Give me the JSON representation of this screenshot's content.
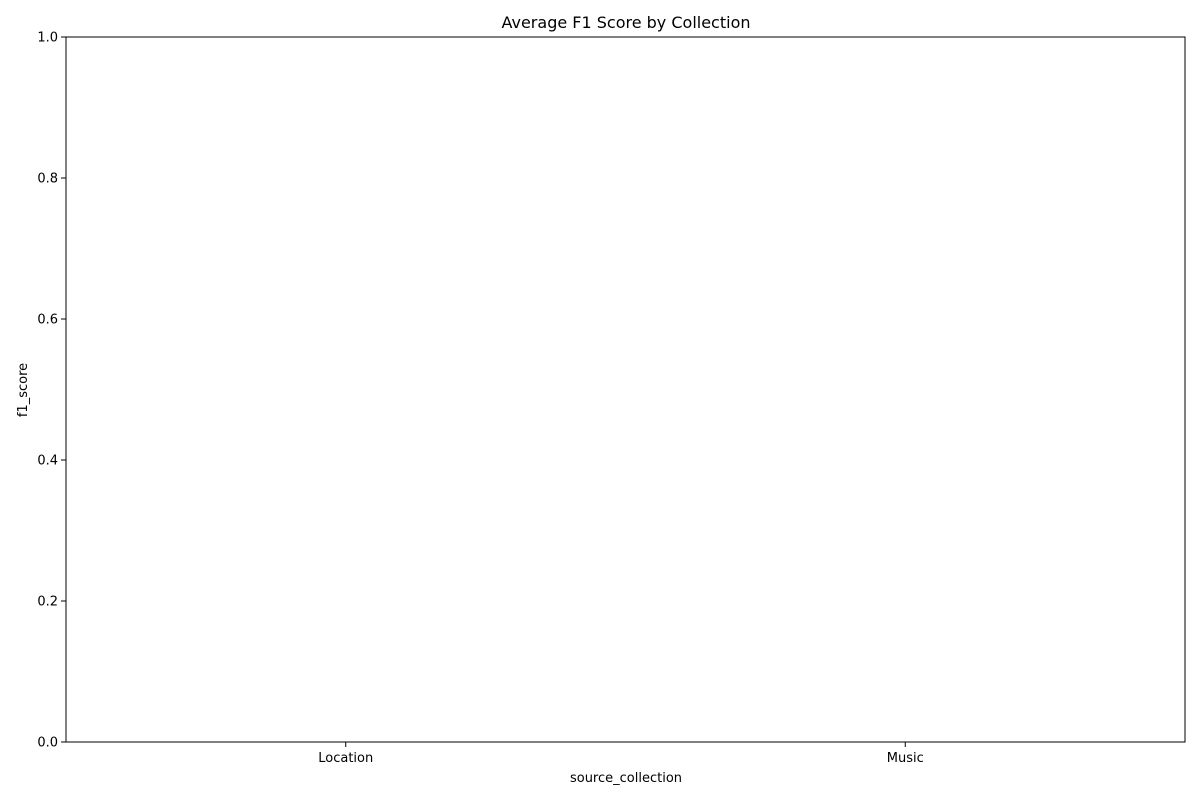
{
  "chart_data": {
    "type": "bar",
    "title": "Average F1 Score by Collection",
    "xlabel": "source_collection",
    "ylabel": "f1_score",
    "categories": [
      "Location",
      "Music"
    ],
    "values": [
      0,
      0
    ],
    "ylim": [
      0,
      1.0
    ],
    "yticks": [
      0.0,
      0.2,
      0.4,
      0.6,
      0.8,
      1.0
    ],
    "ytick_labels": [
      "0.0",
      "0.2",
      "0.4",
      "0.6",
      "0.8",
      "1.0"
    ],
    "grid": false,
    "legend": "none"
  }
}
